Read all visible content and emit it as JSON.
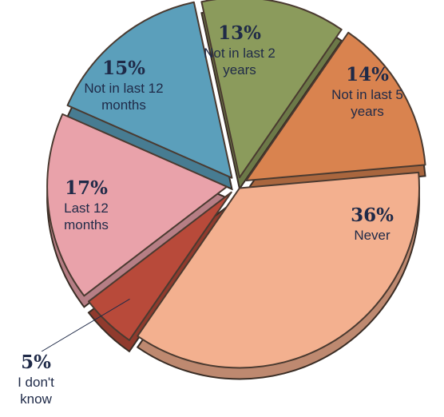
{
  "chart_data": {
    "type": "pie",
    "categories": [
      "Never",
      "I don't know",
      "Last 12 months",
      "Not in last 12 months",
      "Not in last 2 years",
      "Not in last 5 years"
    ],
    "values": [
      36,
      5,
      17,
      15,
      13,
      14
    ],
    "value_labels": [
      "36%",
      "5%",
      "17%",
      "15%",
      "13%",
      "14%"
    ],
    "colors": [
      "#f3b08f",
      "#b84a3a",
      "#e9a2aa",
      "#5b9fbb",
      "#8b9b5c",
      "#d9834f"
    ]
  }
}
